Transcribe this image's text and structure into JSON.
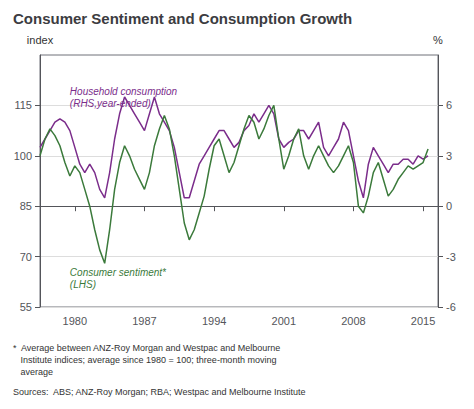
{
  "chart_data": {
    "type": "line",
    "title": "Consumer Sentiment and Consumption Growth",
    "ylabel": "index",
    "y2label": "%",
    "x": [
      1976.5,
      1977.0,
      1977.5,
      1978.0,
      1978.5,
      1979.0,
      1979.5,
      1980.0,
      1980.5,
      1981.0,
      1981.5,
      1982.0,
      1982.5,
      1983.0,
      1983.5,
      1984.0,
      1984.5,
      1985.0,
      1985.5,
      1986.0,
      1986.5,
      1987.0,
      1987.5,
      1988.0,
      1988.5,
      1989.0,
      1989.5,
      1990.0,
      1990.5,
      1991.0,
      1991.5,
      1992.0,
      1992.5,
      1993.0,
      1993.5,
      1994.0,
      1994.5,
      1995.0,
      1995.5,
      1996.0,
      1996.5,
      1997.0,
      1997.5,
      1998.0,
      1998.5,
      1999.0,
      1999.5,
      2000.0,
      2000.5,
      2001.0,
      2001.5,
      2002.0,
      2002.5,
      2003.0,
      2003.5,
      2004.0,
      2004.5,
      2005.0,
      2005.5,
      2006.0,
      2006.5,
      2007.0,
      2007.5,
      2008.0,
      2008.5,
      2009.0,
      2009.5,
      2010.0,
      2010.5,
      2011.0,
      2011.5,
      2012.0,
      2012.5,
      2013.0,
      2013.5,
      2014.0,
      2014.5,
      2015.0,
      2015.5
    ],
    "series": [
      {
        "color": "#3b7a3b",
        "values": [
          100,
          105,
          108,
          106,
          103,
          98,
          94,
          97,
          95,
          90,
          85,
          78,
          72,
          68,
          78,
          90,
          98,
          103,
          100,
          96,
          93,
          90,
          95,
          103,
          108,
          112,
          108,
          100,
          90,
          80,
          75,
          78,
          83,
          88,
          96,
          103,
          105,
          100,
          95,
          98,
          103,
          108,
          112,
          110,
          105,
          108,
          112,
          115,
          105,
          96,
          100,
          105,
          108,
          100,
          96,
          100,
          103,
          100,
          97,
          95,
          97,
          100,
          103,
          98,
          85,
          83,
          88,
          95,
          98,
          93,
          88,
          90,
          93,
          95,
          97,
          96,
          97,
          98,
          102
        ]
      },
      {
        "color": "#7b2d8b",
        "axis": "y2",
        "values": [
          3.5,
          4.0,
          4.5,
          5.0,
          5.2,
          5.0,
          4.5,
          3.5,
          2.5,
          2.0,
          2.5,
          2.0,
          1.0,
          0.5,
          2.0,
          4.0,
          5.5,
          6.5,
          6.0,
          5.5,
          5.0,
          4.5,
          5.5,
          6.5,
          5.5,
          5.0,
          4.5,
          3.5,
          2.0,
          0.5,
          0.5,
          1.5,
          2.5,
          3.0,
          3.5,
          4.0,
          4.5,
          4.5,
          4.0,
          3.5,
          3.8,
          4.5,
          4.8,
          5.5,
          5.0,
          5.5,
          6.0,
          5.5,
          4.0,
          3.5,
          3.8,
          4.0,
          4.5,
          4.5,
          4.0,
          4.5,
          5.0,
          3.5,
          3.0,
          3.5,
          4.0,
          5.0,
          4.5,
          3.0,
          1.5,
          0.5,
          2.5,
          3.5,
          3.0,
          2.5,
          2.0,
          2.5,
          2.5,
          2.8,
          2.8,
          2.5,
          3.0,
          2.8,
          3.0
        ]
      }
    ],
    "xlim": [
      1976.5,
      2016.5
    ],
    "xticks": [
      1980,
      1987,
      1994,
      2001,
      2008,
      2015
    ],
    "ylim": [
      55,
      130
    ],
    "yticks": [
      55,
      70,
      85,
      100,
      115
    ],
    "y2lim": [
      -6,
      9
    ],
    "y2ticks": [
      -6,
      -3,
      0,
      3,
      6
    ],
    "grid": true,
    "annotations": [
      {
        "text": "Household consumption\n(RHS,year-ended)",
        "x": 1979.5,
        "y": 121,
        "color": "#7b2d8b"
      },
      {
        "text": "Consumer sentiment*\n(LHS)",
        "x": 1979.5,
        "y": 67,
        "color": "#3b7a3b"
      }
    ],
    "footnote": "*  Average between ANZ-Roy Morgan and Westpac and Melbourne\n   Institute indices; average since 1980 = 100; three-month moving\n   average",
    "sources": "Sources:  ABS; ANZ-Roy Morgan; RBA; Westpac and Melbourne Institute"
  }
}
